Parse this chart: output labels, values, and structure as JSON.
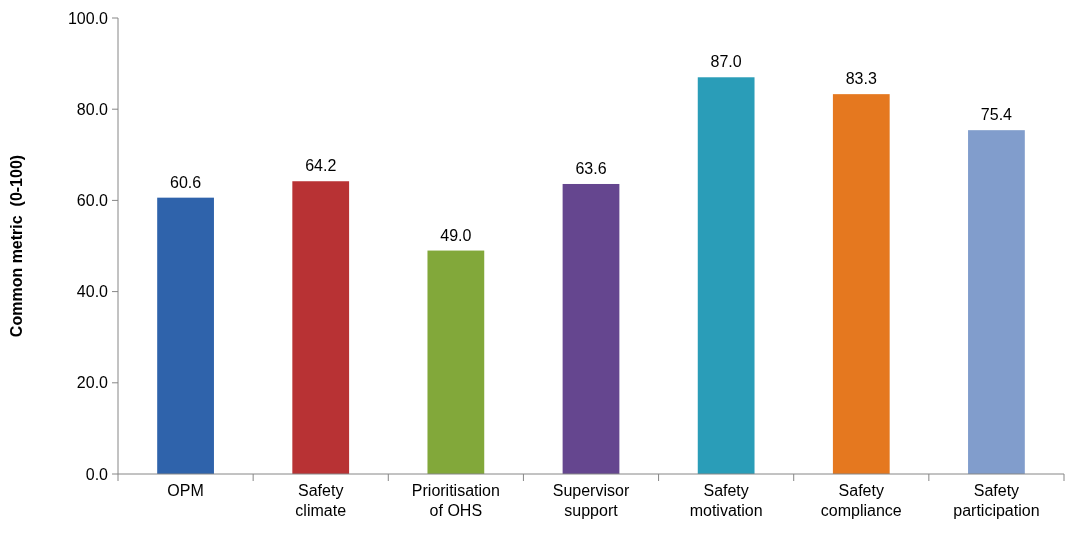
{
  "chart_data": {
    "type": "bar",
    "ylabel": "Common metric  (0-100)",
    "categories": [
      "OPM",
      "Safety climate",
      "Prioritisation of OHS",
      "Supervisor support",
      "Safety motivation",
      "Safety compliance",
      "Safety participation"
    ],
    "values": [
      60.6,
      64.2,
      49.0,
      63.6,
      87.0,
      83.3,
      75.4
    ],
    "colors": [
      "#2f63ab",
      "#b83234",
      "#82a83a",
      "#65468f",
      "#2a9db8",
      "#e5781f",
      "#819dcc"
    ],
    "ylim": [
      0,
      100
    ],
    "yticks": [
      {
        "value": 0,
        "label": "0.0"
      },
      {
        "value": 20,
        "label": "20.0"
      },
      {
        "value": 40,
        "label": "40.0"
      },
      {
        "value": 60,
        "label": "60.0"
      },
      {
        "value": 80,
        "label": "80.0"
      },
      {
        "value": 100,
        "label": "100.0"
      }
    ],
    "value_labels": [
      "60.6",
      "64.2",
      "49.0",
      "63.6",
      "87.0",
      "83.3",
      "75.4"
    ],
    "grid": false
  }
}
